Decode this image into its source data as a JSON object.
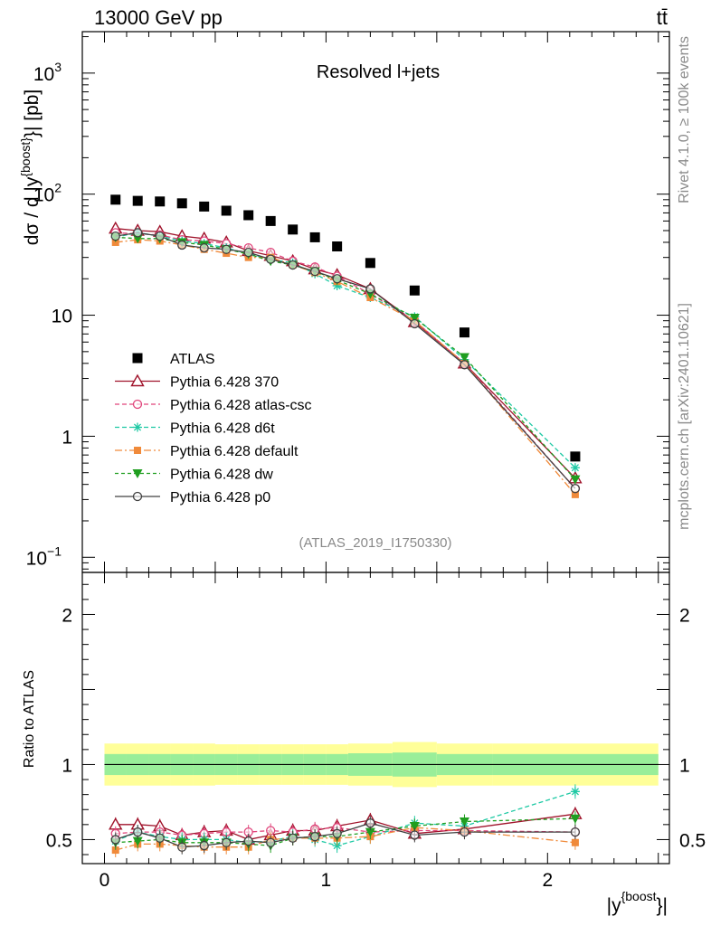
{
  "header": {
    "energy_label": "13000 GeV pp",
    "process_label": "tt̄"
  },
  "side_texts": {
    "rivet": "Rivet 4.1.0, ≥ 100k events",
    "mcplots": "mcplots.cern.ch [arXiv:2401.10621]"
  },
  "chart_data": [
    {
      "type": "line",
      "panel": "main",
      "title": "Resolved l+jets",
      "analysis_label": "(ATLAS_2019_I1750330)",
      "ylabel": "dσ / d |y^{boost}| [pb]",
      "ylabel_main": "dσ / d |y",
      "ylabel_sup": "{boost}",
      "ylabel_tail": "}| [pb]",
      "yscale": "log",
      "xlim": [
        -0.1,
        2.55
      ],
      "ylim": [
        0.075,
        2200
      ],
      "yticks": [
        {
          "value": 0.1,
          "base": "10",
          "exp": "−1"
        },
        {
          "value": 1,
          "base": "1",
          "exp": ""
        },
        {
          "value": 10,
          "base": "10",
          "exp": ""
        },
        {
          "value": 100,
          "base": "10",
          "exp": "2"
        },
        {
          "value": 1000,
          "base": "10",
          "exp": "3"
        }
      ],
      "x": [
        0.05,
        0.15,
        0.25,
        0.35,
        0.45,
        0.55,
        0.65,
        0.75,
        0.85,
        0.95,
        1.05,
        1.2,
        1.4,
        1.625,
        2.125
      ],
      "series": [
        {
          "name": "ATLAS",
          "color": "#000000",
          "marker": "square",
          "dash": "",
          "line": false,
          "values": [
            90,
            88,
            87,
            84,
            79,
            73,
            67,
            60,
            51,
            44,
            37,
            27,
            16,
            7.2,
            0.68
          ]
        },
        {
          "name": "Pythia 6.428 370",
          "color": "#a0132b",
          "marker": "triangle-open",
          "dash": "",
          "line": true,
          "values": [
            52,
            50,
            49,
            45,
            43,
            40,
            34,
            31,
            28,
            24,
            21.5,
            16.5,
            8.8,
            4.0,
            0.45
          ]
        },
        {
          "name": "Pythia 6.428 atlas-csc",
          "color": "#e0457b",
          "marker": "circle-open",
          "dash": "5,3",
          "line": true,
          "values": [
            48,
            47,
            46,
            42,
            41,
            39,
            36,
            33,
            28,
            25,
            21,
            15,
            9.0,
            4.0,
            0.37
          ]
        },
        {
          "name": "Pythia 6.428 d6t",
          "color": "#1ec9a4",
          "marker": "star",
          "dash": "5,3",
          "line": true,
          "values": [
            44,
            48,
            45,
            41,
            39,
            36,
            32,
            29,
            27,
            22,
            17.5,
            14,
            9.7,
            4.3,
            0.55
          ]
        },
        {
          "name": "Pythia 6.428 default",
          "color": "#f08a3a",
          "marker": "square-filled",
          "dash": "8,3,2,3",
          "line": true,
          "values": [
            40,
            42,
            41,
            38,
            35,
            32.5,
            30,
            30,
            26,
            22.5,
            19,
            14,
            9.0,
            4.0,
            0.33
          ]
        },
        {
          "name": "Pythia 6.428 dw",
          "color": "#1f9e1f",
          "marker": "triangle-down",
          "dash": "4,3",
          "line": true,
          "values": [
            44,
            43,
            43,
            40,
            38,
            35,
            32,
            28,
            26,
            23,
            19.5,
            15,
            9.5,
            4.5,
            0.44
          ]
        },
        {
          "name": "Pythia 6.428 p0",
          "color": "#404040",
          "marker": "circle-open",
          "dash": "",
          "line": true,
          "values": [
            45,
            48,
            45,
            38,
            36,
            35,
            33,
            29,
            26,
            23,
            20,
            16.5,
            8.5,
            3.9,
            0.37
          ]
        }
      ],
      "legend": {
        "position": "bottom-left"
      }
    },
    {
      "type": "line",
      "panel": "ratio",
      "ylabel": "Ratio to ATLAS",
      "xlabel": "|y^{boost}|",
      "xlabel_main": "|y",
      "xlabel_sup": "{boost",
      "xlabel_tail": "}|",
      "xlim": [
        -0.1,
        2.55
      ],
      "ylim": [
        0.34,
        2.28
      ],
      "yticks": [
        {
          "value": 0.5,
          "label": "0.5"
        },
        {
          "value": 1,
          "label": "1"
        },
        {
          "value": 2,
          "label": "2"
        }
      ],
      "xticks": [
        {
          "value": 0,
          "label": "0"
        },
        {
          "value": 1,
          "label": "1"
        },
        {
          "value": 2,
          "label": "2"
        }
      ],
      "band_edges": [
        0.0,
        0.1,
        0.2,
        0.3,
        0.4,
        0.5,
        0.6,
        0.7,
        0.8,
        0.9,
        1.0,
        1.1,
        1.3,
        1.5,
        1.75,
        2.5
      ],
      "band_inner": [
        0.07,
        0.07,
        0.07,
        0.07,
        0.07,
        0.07,
        0.07,
        0.07,
        0.07,
        0.07,
        0.07,
        0.075,
        0.08,
        0.07,
        0.07
      ],
      "band_outer": [
        0.14,
        0.14,
        0.14,
        0.14,
        0.14,
        0.135,
        0.135,
        0.135,
        0.135,
        0.135,
        0.135,
        0.14,
        0.15,
        0.14,
        0.14
      ],
      "series": [
        {
          "name": "Pythia 6.428 370",
          "values": [
            0.6,
            0.6,
            0.59,
            0.53,
            0.55,
            0.56,
            0.5,
            0.53,
            0.56,
            0.56,
            0.59,
            0.63,
            0.54,
            0.57,
            0.67
          ]
        },
        {
          "name": "Pythia 6.428 atlas-csc",
          "values": [
            0.54,
            0.55,
            0.55,
            0.53,
            0.54,
            0.55,
            0.55,
            0.56,
            0.55,
            0.57,
            0.58,
            0.55,
            0.56,
            0.56,
            0.55
          ]
        },
        {
          "name": "Pythia 6.428 d6t",
          "values": [
            0.49,
            0.55,
            0.52,
            0.5,
            0.5,
            0.5,
            0.48,
            0.49,
            0.52,
            0.5,
            0.46,
            0.52,
            0.61,
            0.59,
            0.82
          ]
        },
        {
          "name": "Pythia 6.428 default",
          "values": [
            0.43,
            0.47,
            0.47,
            0.46,
            0.45,
            0.45,
            0.45,
            0.5,
            0.51,
            0.51,
            0.51,
            0.52,
            0.58,
            0.56,
            0.48
          ]
        },
        {
          "name": "Pythia 6.428 dw",
          "values": [
            0.48,
            0.49,
            0.5,
            0.48,
            0.48,
            0.48,
            0.47,
            0.46,
            0.51,
            0.52,
            0.52,
            0.55,
            0.59,
            0.62,
            0.64
          ]
        },
        {
          "name": "Pythia 6.428 p0",
          "values": [
            0.5,
            0.55,
            0.51,
            0.45,
            0.46,
            0.48,
            0.49,
            0.48,
            0.51,
            0.52,
            0.54,
            0.61,
            0.53,
            0.55,
            0.55
          ]
        }
      ]
    }
  ]
}
